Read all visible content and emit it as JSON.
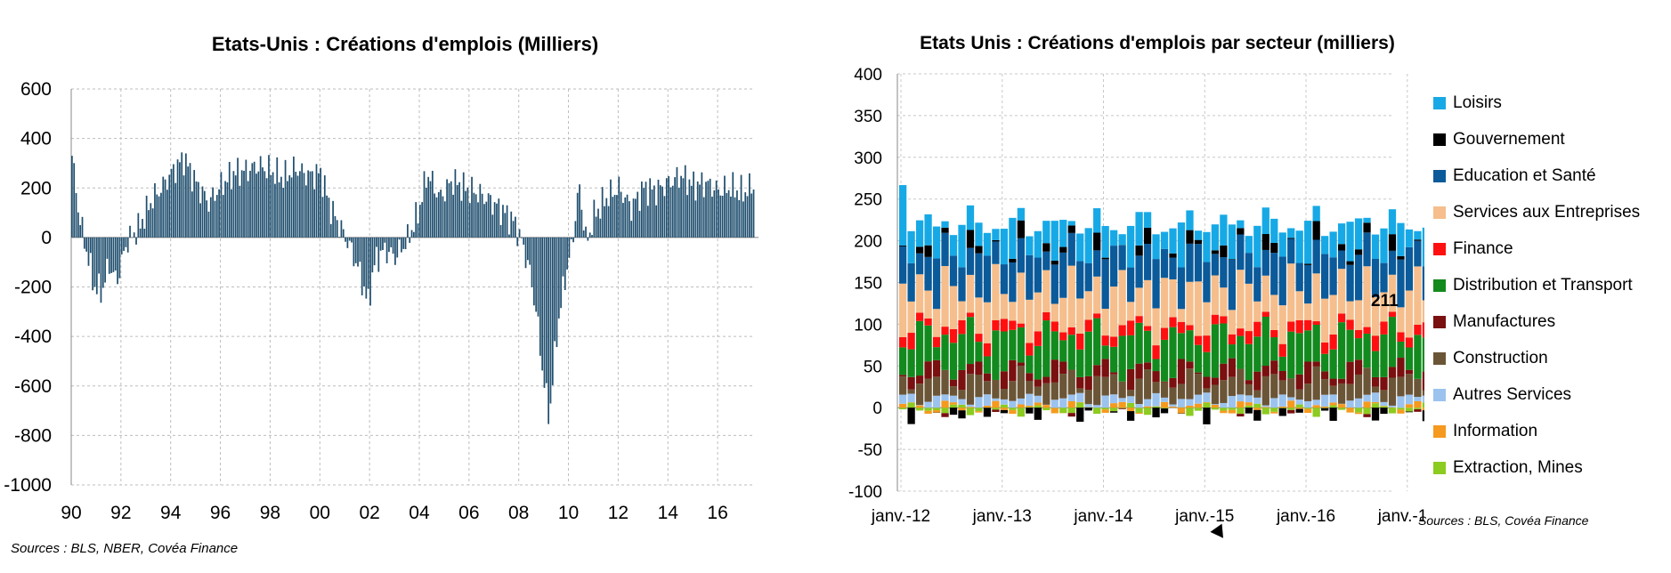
{
  "chart_data": [
    {
      "type": "bar",
      "title": "Etats-Unis : Créations d'emplois (Milliers)",
      "xlabel": "",
      "ylabel": "",
      "ylim": [
        -1000,
        600
      ],
      "yticks": [
        600,
        400,
        200,
        0,
        -200,
        -400,
        -600,
        -800,
        -1000
      ],
      "xlim": [
        1990,
        2017.5
      ],
      "xticks": [
        "90",
        "92",
        "94",
        "96",
        "98",
        "00",
        "02",
        "04",
        "06",
        "08",
        "10",
        "12",
        "14",
        "16"
      ],
      "grid": true,
      "bar_color": "#1f4e6e",
      "source": "Sources : BLS, NBER, Covéa Finance",
      "anchors": [
        [
          1990.0,
          330
        ],
        [
          1990.3,
          80
        ],
        [
          1990.6,
          -60
        ],
        [
          1990.9,
          -200
        ],
        [
          1991.2,
          -220
        ],
        [
          1991.5,
          -110
        ],
        [
          1991.8,
          -180
        ],
        [
          1992.2,
          -20
        ],
        [
          1992.7,
          40
        ],
        [
          1993.2,
          150
        ],
        [
          1993.6,
          200
        ],
        [
          1994.0,
          260
        ],
        [
          1994.5,
          320
        ],
        [
          1995.0,
          220
        ],
        [
          1995.5,
          140
        ],
        [
          1996.0,
          210
        ],
        [
          1996.5,
          260
        ],
        [
          1997.0,
          270
        ],
        [
          1997.5,
          290
        ],
        [
          1998.0,
          270
        ],
        [
          1998.5,
          240
        ],
        [
          1999.0,
          280
        ],
        [
          1999.5,
          250
        ],
        [
          2000.0,
          260
        ],
        [
          2000.4,
          120
        ],
        [
          2000.8,
          40
        ],
        [
          2001.2,
          -40
        ],
        [
          2001.6,
          -150
        ],
        [
          2001.9,
          -270
        ],
        [
          2002.2,
          -90
        ],
        [
          2002.6,
          -50
        ],
        [
          2003.0,
          -80
        ],
        [
          2003.5,
          -10
        ],
        [
          2003.9,
          90
        ],
        [
          2004.3,
          260
        ],
        [
          2004.8,
          160
        ],
        [
          2005.3,
          230
        ],
        [
          2005.8,
          200
        ],
        [
          2006.3,
          180
        ],
        [
          2006.8,
          150
        ],
        [
          2007.3,
          110
        ],
        [
          2007.8,
          60
        ],
        [
          2008.1,
          -20
        ],
        [
          2008.4,
          -130
        ],
        [
          2008.7,
          -320
        ],
        [
          2008.95,
          -560
        ],
        [
          2009.2,
          -730
        ],
        [
          2009.5,
          -390
        ],
        [
          2009.8,
          -180
        ],
        [
          2010.1,
          -40
        ],
        [
          2010.4,
          210
        ],
        [
          2010.7,
          -30
        ],
        [
          2011.0,
          90
        ],
        [
          2011.5,
          160
        ],
        [
          2012.0,
          200
        ],
        [
          2012.5,
          120
        ],
        [
          2013.0,
          200
        ],
        [
          2013.5,
          190
        ],
        [
          2014.0,
          220
        ],
        [
          2014.5,
          250
        ],
        [
          2015.0,
          210
        ],
        [
          2015.5,
          220
        ],
        [
          2016.0,
          190
        ],
        [
          2016.5,
          200
        ],
        [
          2017.0,
          180
        ],
        [
          2017.4,
          210
        ]
      ]
    },
    {
      "type": "bar",
      "stacked": true,
      "title": "Etats Unis : Créations d'emplois par secteur (milliers)",
      "xlabel": "",
      "ylabel": "",
      "ylim": [
        -100,
        400
      ],
      "yticks": [
        400,
        350,
        300,
        250,
        200,
        150,
        100,
        50,
        0,
        -50,
        -100
      ],
      "x_start": "janv.-12",
      "months": 65,
      "xticks": [
        "janv.-12",
        "janv.-13",
        "janv.-14",
        "janv.-15",
        "janv.-16",
        "janv.-17"
      ],
      "grid": true,
      "last_value_label": "211",
      "source": "Sources : BLS, Covéa Finance",
      "series": [
        {
          "name": "Loisirs",
          "color": "#17a9e6",
          "mean": 30,
          "amp": 25
        },
        {
          "name": "Gouvernement",
          "color": "#000000",
          "mean": 2,
          "amp": 22
        },
        {
          "name": "Education et Santé",
          "color": "#0b5a9a",
          "mean": 42,
          "amp": 20
        },
        {
          "name": "Services aux Entreprises",
          "color": "#f5be8c",
          "mean": 45,
          "amp": 30
        },
        {
          "name": "Finance",
          "color": "#ff1010",
          "mean": 12,
          "amp": 8
        },
        {
          "name": "Distribution et Transport",
          "color": "#138a1e",
          "mean": 40,
          "amp": 28
        },
        {
          "name": "Manufactures",
          "color": "#7a1010",
          "mean": 12,
          "amp": 18
        },
        {
          "name": "Construction",
          "color": "#6b5537",
          "mean": 22,
          "amp": 18
        },
        {
          "name": "Autres Services",
          "color": "#9cc3ee",
          "mean": 8,
          "amp": 8
        },
        {
          "name": "Information",
          "color": "#f59a1e",
          "mean": 1,
          "amp": 8
        },
        {
          "name": "Extraction, Mines",
          "color": "#8ccb20",
          "mean": -2,
          "amp": 9
        }
      ]
    }
  ]
}
